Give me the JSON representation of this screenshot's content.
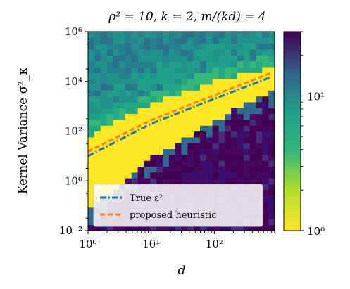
{
  "chart_data": {
    "type": "heatmap",
    "title": "ρ² = 10, k = 2, m/(kd) = 4",
    "xlabel": "d",
    "ylabel": "Kernel Variance σ²_κ",
    "x_scale": "log",
    "y_scale": "log",
    "xlim": [
      1,
      900
    ],
    "ylim": [
      0.01,
      1000000
    ],
    "x_ticks": [
      {
        "value": 1,
        "label": "10⁰"
      },
      {
        "value": 10,
        "label": "10¹"
      },
      {
        "value": 100,
        "label": "10²"
      }
    ],
    "y_ticks": [
      {
        "value": 0.01,
        "label": "10⁻²"
      },
      {
        "value": 1,
        "label": "10⁰"
      },
      {
        "value": 100,
        "label": "10²"
      },
      {
        "value": 10000,
        "label": "10⁴"
      },
      {
        "value": 1000000,
        "label": "10⁶"
      }
    ],
    "colorbar": {
      "scale": "log",
      "range": [
        1,
        30
      ],
      "colormap": "viridis_r",
      "ticks": [
        {
          "value": 1,
          "label": "10⁰"
        },
        {
          "value": 10,
          "label": "10¹"
        }
      ]
    },
    "heatmap_regions": {
      "low_value_band_lower_log10_sigma_at_log10_d": [
        [
          0,
          -1.2
        ],
        [
          1,
          0.9
        ],
        [
          2,
          2.4
        ],
        [
          2.95,
          3.7
        ]
      ],
      "low_value_band_upper_log10_sigma_at_log10_d": [
        [
          0,
          1.8
        ],
        [
          1,
          3.1
        ],
        [
          2,
          4.0
        ],
        [
          2.95,
          4.6
        ]
      ],
      "high_value_region": "below lower boundary (d large, σ²_κ small)",
      "mid_value_region": "above upper boundary"
    },
    "series": [
      {
        "name": "True ε²",
        "style": "dashdot",
        "color": "#1f77b4",
        "x": [
          1,
          10,
          100,
          800
        ],
        "y": [
          10,
          200,
          2000,
          15000
        ]
      },
      {
        "name": "proposed heuristic",
        "style": "dashed",
        "color": "#ff7f0e",
        "x": [
          1,
          10,
          100,
          800
        ],
        "y": [
          15,
          280,
          2800,
          22000
        ]
      }
    ],
    "legend": {
      "location": "lower-left",
      "entries": [
        "True ε²",
        "proposed heuristic"
      ]
    }
  }
}
